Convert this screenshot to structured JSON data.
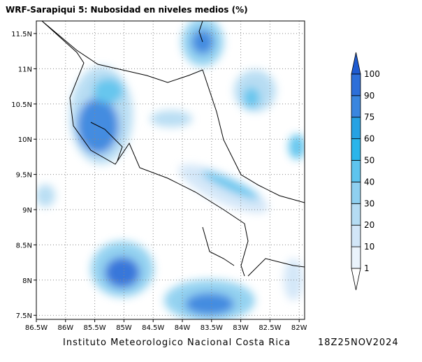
{
  "header": {
    "title": "WRF-Sarapiqui 5:  Nubosidad en niveles medios (%)"
  },
  "map": {
    "lon_ticks": [
      "86.5W",
      "86W",
      "85.5W",
      "85W",
      "84.5W",
      "84W",
      "83.5W",
      "83W",
      "82.5W",
      "82W"
    ],
    "lat_ticks": [
      "11.5N",
      "11N",
      "10.5N",
      "10N",
      "9.5N",
      "9N",
      "8.5N",
      "8N",
      "7.5N"
    ]
  },
  "colorbar": {
    "levels": [
      1,
      10,
      20,
      30,
      40,
      50,
      60,
      75,
      90,
      100
    ],
    "colors": [
      "#ffffff",
      "#eaf3fc",
      "#d2e6f8",
      "#b5dcf3",
      "#8fd0f0",
      "#5ec4ee",
      "#2ab5ea",
      "#26a2e3",
      "#3a86df",
      "#2d6fd9",
      "#1f5bd0"
    ]
  },
  "footer": {
    "institution": "Instituto Meteorologico Nacional Costa Rica",
    "timestamp": "18Z25NOV2024"
  }
}
